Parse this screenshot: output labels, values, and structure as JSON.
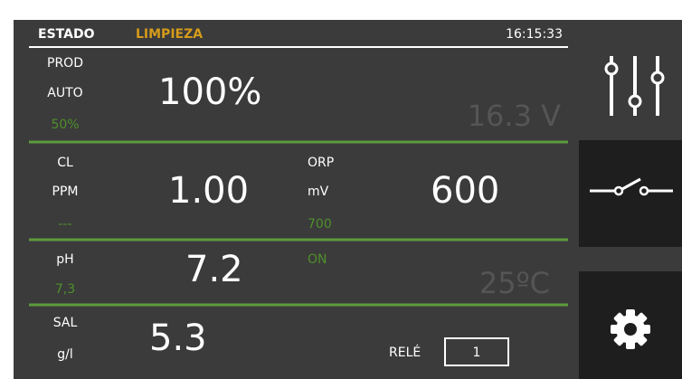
{
  "header": {
    "status_label": "ESTADO",
    "status_value": "LIMPIEZA",
    "time": "16:15:33"
  },
  "production": {
    "label": "PROD",
    "mode": "AUTO",
    "setpoint": "50%",
    "value": "100%",
    "voltage": "16.3 V"
  },
  "chlorine": {
    "label": "CL",
    "unit": "PPM",
    "setpoint": "---",
    "value": "1.00"
  },
  "orp": {
    "label": "ORP",
    "unit": "mV",
    "setpoint": "700",
    "value": "600",
    "status": "ON"
  },
  "ph": {
    "label": "pH",
    "setpoint": "7,3",
    "value": "7.2",
    "temperature": "25ºC"
  },
  "salt": {
    "label": "SAL",
    "unit": "g/l",
    "value": "5.3"
  },
  "relay": {
    "label": "RELÉ",
    "value": "1"
  }
}
